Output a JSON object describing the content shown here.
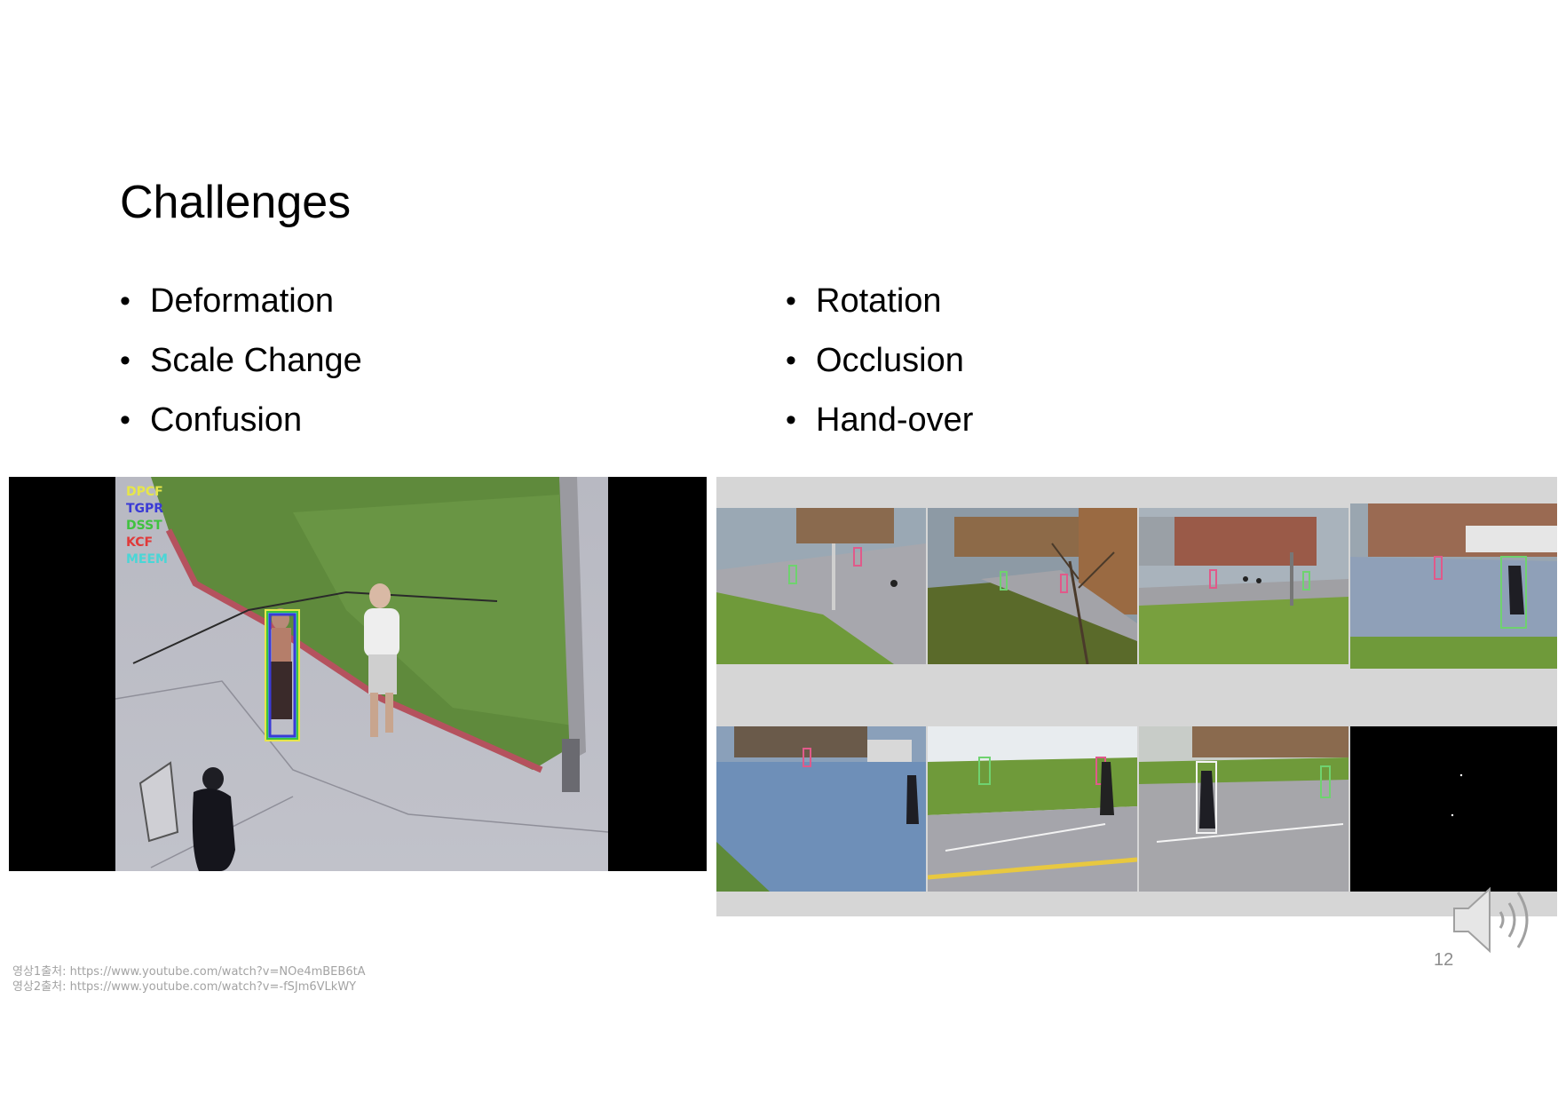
{
  "slide": {
    "title": "Challenges",
    "bullets_left": [
      "Deformation",
      "Scale Change",
      "Confusion"
    ],
    "bullets_right": [
      "Rotation",
      "Occlusion",
      "Hand-over"
    ],
    "page_number": "12"
  },
  "video1": {
    "legend": [
      {
        "label": "DPCF",
        "color": "#e6e64a"
      },
      {
        "label": "TGPR",
        "color": "#3a3ad6"
      },
      {
        "label": "DSST",
        "color": "#3fc23f"
      },
      {
        "label": "KCF",
        "color": "#e03a3a"
      },
      {
        "label": "MEEM",
        "color": "#4ad6d6"
      }
    ]
  },
  "credits": [
    "영상1출처: https://www.youtube.com/watch?v=NOe4mBEB6tA",
    "영상2출처: https://www.youtube.com/watch?v=-fSJm6VLkWY"
  ],
  "icons": {
    "audio": "speaker-icon"
  }
}
